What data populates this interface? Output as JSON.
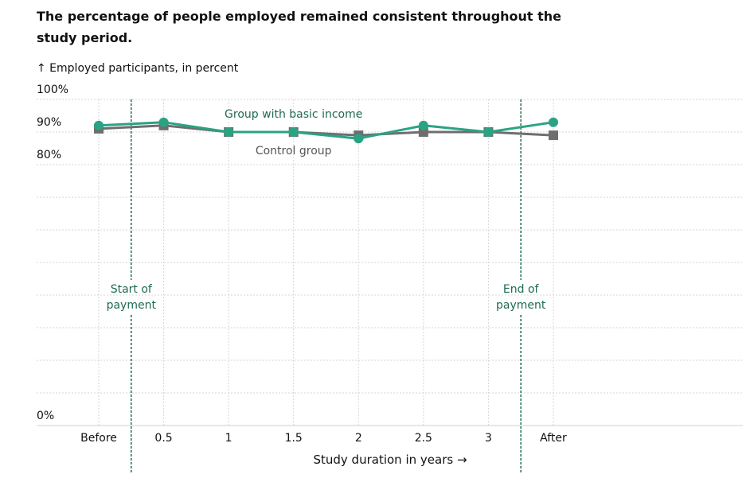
{
  "chart_data": {
    "type": "line",
    "title": "The percentage of people employed remained consistent throughout the study period.",
    "ylabel": "↑ Employed participants, in percent",
    "xlabel": "Study duration in years →",
    "ylim": [
      0,
      100
    ],
    "y_ticks": [
      {
        "value": 100,
        "label": "100%"
      },
      {
        "value": 90,
        "label": "90%"
      },
      {
        "value": 80,
        "label": "80%"
      },
      {
        "value": 0,
        "label": "0%"
      }
    ],
    "categories": [
      "Before",
      "0.5",
      "1",
      "1.5",
      "2",
      "2.5",
      "3",
      "After"
    ],
    "series": [
      {
        "name": "Group with basic income",
        "color": "#2aa384",
        "label_color": "#1f6b4f",
        "marker": "circle",
        "values": [
          92,
          93,
          90,
          90,
          88,
          92,
          90,
          93
        ]
      },
      {
        "name": "Control group",
        "color": "#6e6e6e",
        "label_color": "#555555",
        "marker": "square",
        "values": [
          91,
          92,
          90,
          90,
          89,
          90,
          90,
          89
        ]
      }
    ],
    "annotations": [
      {
        "text_lines": [
          "Start of",
          "payment"
        ],
        "x_between": [
          0,
          1
        ],
        "fraction": 0.5,
        "color": "#1f6b4f"
      },
      {
        "text_lines": [
          "End of",
          "payment"
        ],
        "x_between": [
          6,
          7
        ],
        "fraction": 0.5,
        "color": "#1f6b4f"
      }
    ],
    "grid": true
  }
}
